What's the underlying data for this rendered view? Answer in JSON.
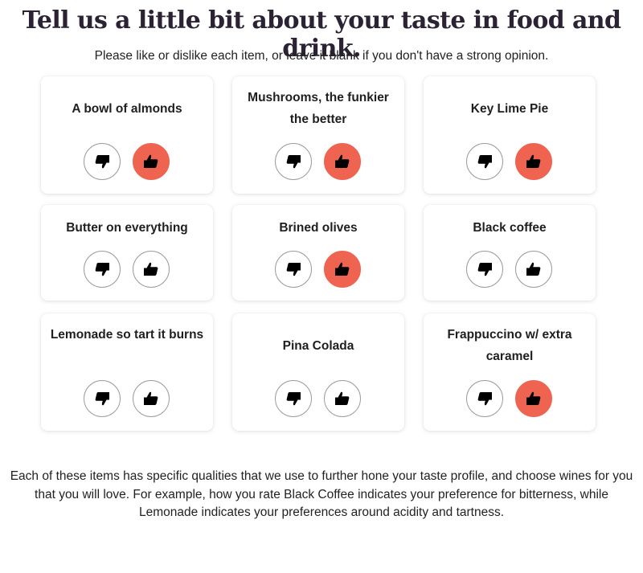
{
  "header": {
    "title": "Tell us a little bit about your taste in food and drink.",
    "subtitle": "Please like or dislike each item, or leave it blank if you don't have a strong opinion."
  },
  "items": [
    {
      "label": "A bowl of almonds",
      "rating": "like"
    },
    {
      "label": "Mushrooms, the funkier the better",
      "rating": "like"
    },
    {
      "label": "Key Lime Pie",
      "rating": "like"
    },
    {
      "label": "Butter on everything",
      "rating": "none"
    },
    {
      "label": "Brined olives",
      "rating": "like"
    },
    {
      "label": "Black coffee",
      "rating": "none"
    },
    {
      "label": "Lemonade so tart it burns",
      "rating": "none"
    },
    {
      "label": "Pina Colada",
      "rating": "none"
    },
    {
      "label": "Frappuccino w/ extra caramel",
      "rating": "like"
    }
  ],
  "icons": {
    "dislike": "thumbs-down-icon",
    "like": "thumbs-up-icon"
  },
  "colors": {
    "accent": "#ef6351",
    "title": "#2b2233"
  },
  "footer": {
    "text": "Each of these items has specific qualities that we use to further hone your taste profile, and choose wines for you that you will love. For example, how you rate Black Coffee indicates your preference for bitterness, while Lemonade indicates your preferences around acidity and tartness."
  }
}
